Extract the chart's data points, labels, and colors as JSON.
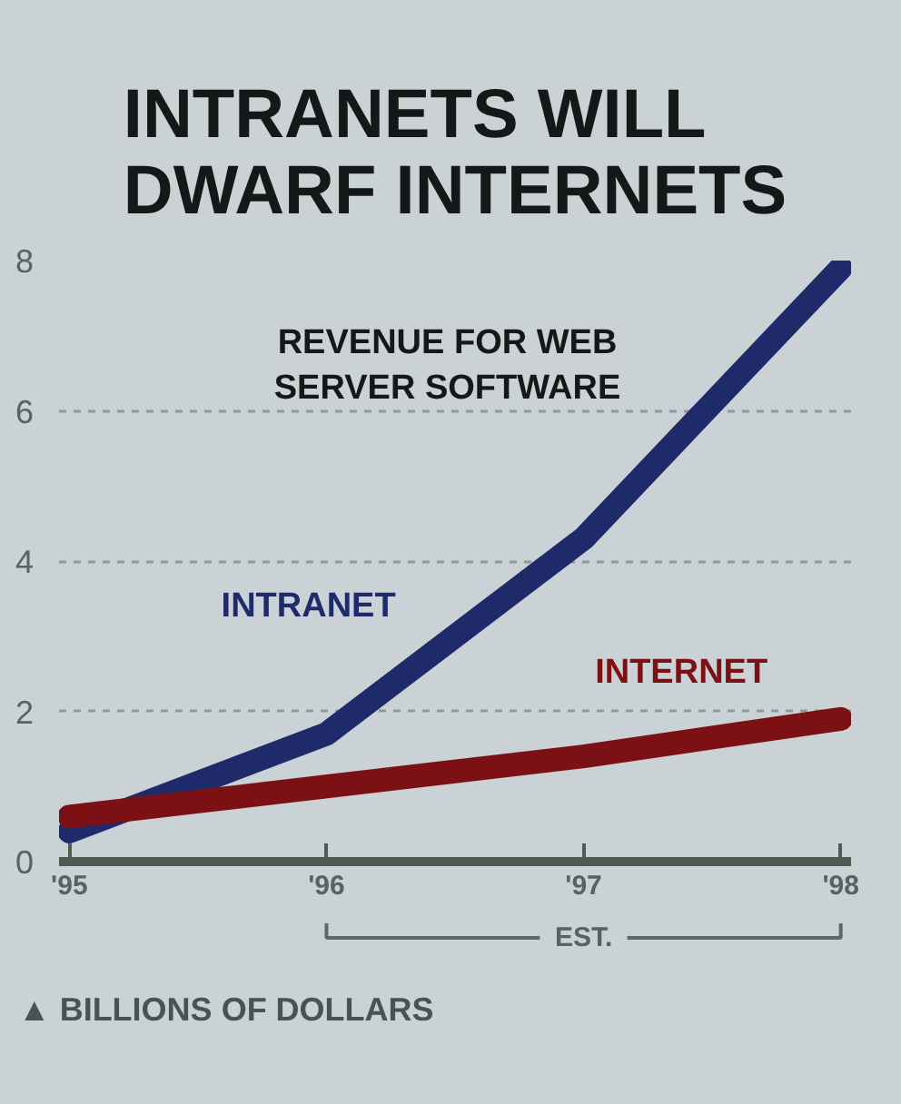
{
  "chart_data": {
    "type": "line",
    "title": "INTRANETS WILL DWARF INTERNETS",
    "subtitle": "REVENUE FOR WEB SERVER SOFTWARE",
    "ylabel": "▲ BILLIONS OF DOLLARS",
    "categories": [
      "'95",
      "'96",
      "'97",
      "'98"
    ],
    "series": [
      {
        "name": "INTRANET",
        "color": "#1f2a6b",
        "values": [
          0.4,
          1.7,
          4.3,
          7.9
        ]
      },
      {
        "name": "INTERNET",
        "color": "#7b1114",
        "values": [
          0.6,
          1.0,
          1.4,
          1.9
        ]
      }
    ],
    "ylim": [
      0,
      8
    ],
    "yticks": [
      0,
      2,
      4,
      6,
      8
    ],
    "grid": "y",
    "line_style": "solid",
    "annotations": [
      "EST."
    ]
  }
}
